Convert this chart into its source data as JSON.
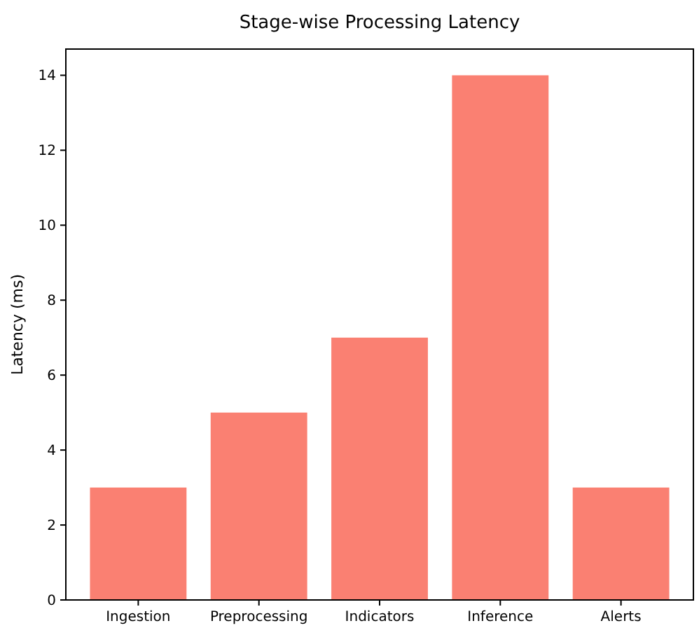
{
  "chart_data": {
    "type": "bar",
    "title": "Stage-wise Processing Latency",
    "ylabel": "Latency (ms)",
    "categories": [
      "Ingestion",
      "Preprocessing",
      "Indicators",
      "Inference",
      "Alerts"
    ],
    "values": [
      3,
      5,
      7,
      14,
      3
    ],
    "color": "#fa8072",
    "ylim": [
      0,
      14.7
    ],
    "yticks": [
      0,
      2,
      4,
      6,
      8,
      10,
      12,
      14
    ],
    "grid": false
  }
}
